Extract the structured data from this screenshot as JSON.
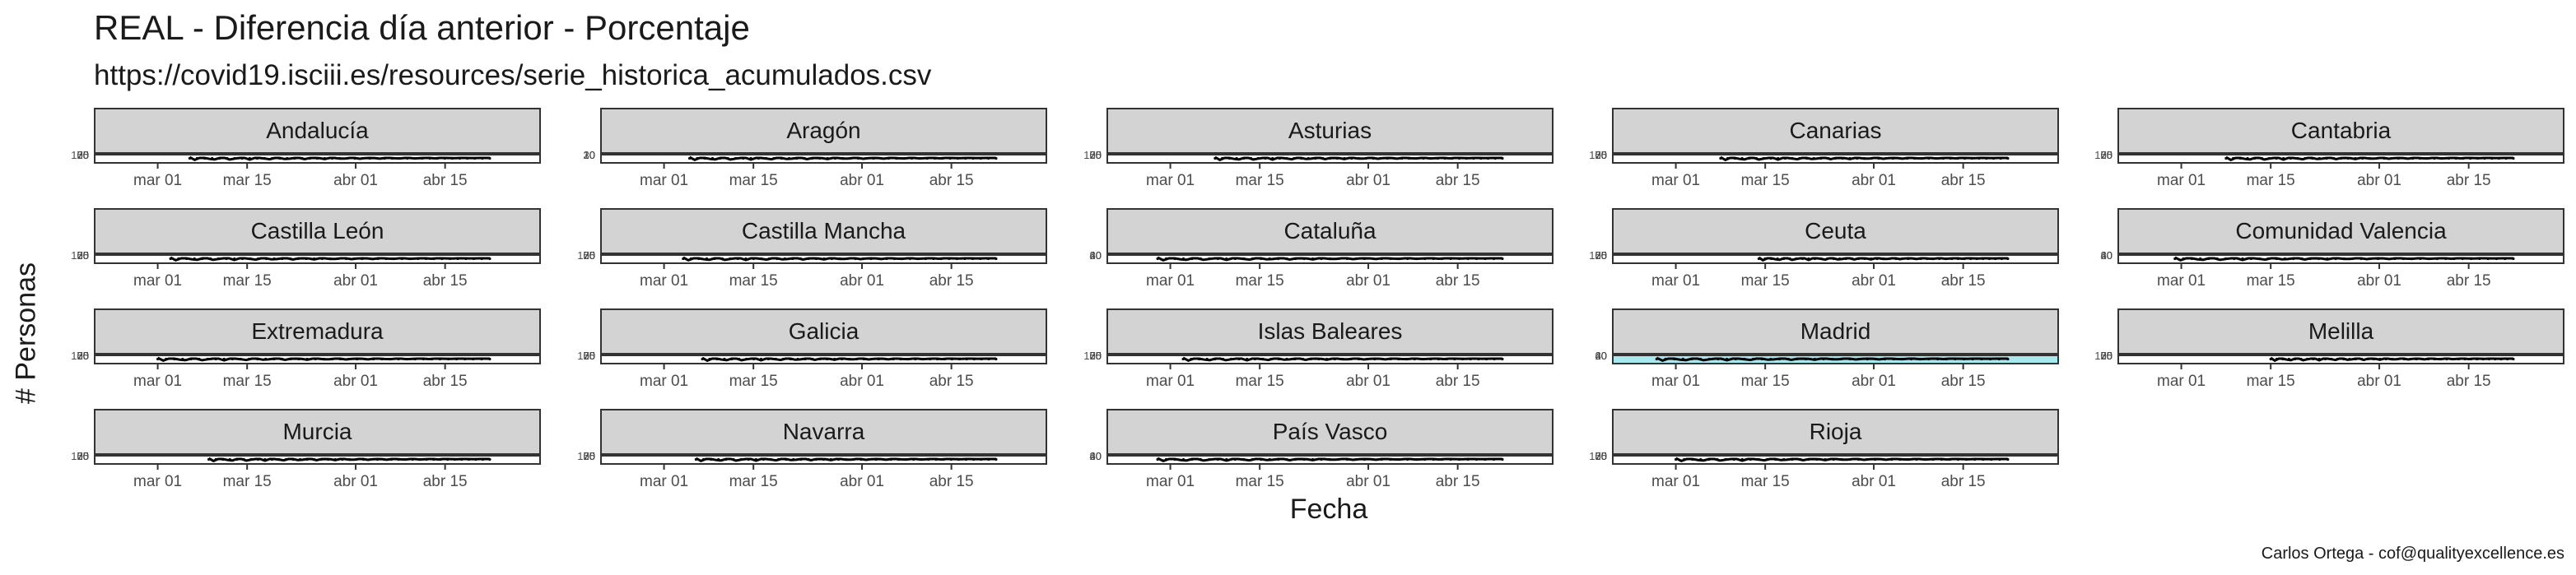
{
  "chart_data": {
    "type": "line",
    "title": "REAL - Diferencia día anterior - Porcentaje",
    "subtitle": "https://covid19.isciii.es/resources/serie_historica_acumulados.csv",
    "xlabel": "Fecha",
    "ylabel": "# Personas",
    "caption": "Carlos Ortega - cof@qualityexcellence.es",
    "x_ticks": [
      "mar 01",
      "mar 15",
      "abr 01",
      "abr 15"
    ],
    "xlim": [
      "2020-02-20",
      "2020-04-30"
    ],
    "grid": false,
    "highlight_color": "#a8e8ee",
    "facets": [
      {
        "name": "Andalucía",
        "start": "2020-03-06",
        "yticks": [
          "100",
          "75",
          "50",
          "25",
          "0"
        ],
        "highlight": false
      },
      {
        "name": "Aragón",
        "start": "2020-03-05",
        "yticks": [
          "30",
          "20",
          "10",
          "0"
        ],
        "highlight": false
      },
      {
        "name": "Asturias",
        "start": "2020-03-08",
        "yticks": [
          "100",
          "75",
          "50",
          "25",
          "0"
        ],
        "highlight": false
      },
      {
        "name": "Canarias",
        "start": "2020-03-08",
        "yticks": [
          "100",
          "75",
          "50",
          "25",
          "0"
        ],
        "highlight": false
      },
      {
        "name": "Cantabria",
        "start": "2020-03-08",
        "yticks": [
          "100",
          "75",
          "50",
          "25",
          "0"
        ],
        "highlight": false
      },
      {
        "name": "Castilla León",
        "start": "2020-03-03",
        "yticks": [
          "100",
          "75",
          "50",
          "25",
          "0"
        ],
        "highlight": false
      },
      {
        "name": "Castilla Mancha",
        "start": "2020-03-04",
        "yticks": [
          "100",
          "75",
          "50",
          "25",
          "0"
        ],
        "highlight": false
      },
      {
        "name": "Cataluña",
        "start": "2020-02-28",
        "yticks": [
          "60",
          "40",
          "20",
          "0"
        ],
        "highlight": false
      },
      {
        "name": "Ceuta",
        "start": "2020-03-14",
        "yticks": [
          "100",
          "75",
          "50",
          "25",
          "0"
        ],
        "highlight": false
      },
      {
        "name": "Comunidad Valencia",
        "start": "2020-02-29",
        "yticks": [
          "60",
          "40",
          "20",
          "0"
        ],
        "highlight": false
      },
      {
        "name": "Extremadura",
        "start": "2020-03-01",
        "yticks": [
          "100",
          "75",
          "50",
          "25",
          "0"
        ],
        "highlight": false
      },
      {
        "name": "Galicia",
        "start": "2020-03-07",
        "yticks": [
          "100",
          "75",
          "50",
          "25",
          "0"
        ],
        "highlight": false
      },
      {
        "name": "Islas Baleares",
        "start": "2020-03-03",
        "yticks": [
          "100",
          "75",
          "50",
          "25",
          "0"
        ],
        "highlight": false
      },
      {
        "name": "Madrid",
        "start": "2020-02-27",
        "yticks": [
          "60",
          "40",
          "20",
          "0"
        ],
        "highlight": true
      },
      {
        "name": "Melilla",
        "start": "2020-03-15",
        "yticks": [
          "100",
          "75",
          "50",
          "25",
          "0"
        ],
        "highlight": false
      },
      {
        "name": "Murcia",
        "start": "2020-03-09",
        "yticks": [
          "100",
          "75",
          "50",
          "25",
          "0"
        ],
        "highlight": false
      },
      {
        "name": "Navarra",
        "start": "2020-03-06",
        "yticks": [
          "100",
          "75",
          "50",
          "25",
          "0"
        ],
        "highlight": false
      },
      {
        "name": "País Vasco",
        "start": "2020-02-28",
        "yticks": [
          "60",
          "40",
          "20",
          "0"
        ],
        "highlight": false
      },
      {
        "name": "Rioja",
        "start": "2020-03-01",
        "yticks": [
          "100",
          "75",
          "50",
          "25",
          "0"
        ],
        "highlight": false
      }
    ]
  }
}
